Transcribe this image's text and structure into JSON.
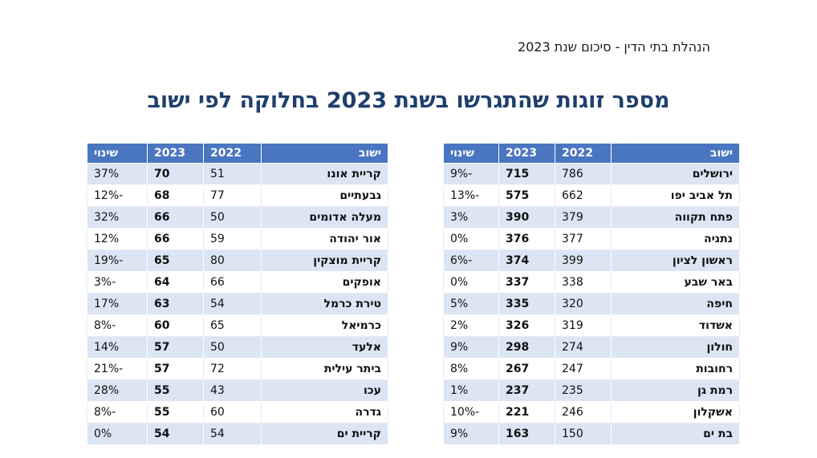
{
  "header": {
    "text": "הנהלת בתי הדין - סיכום שנת 2023"
  },
  "title": "מספר זוגות שהתגרשו בשנת 2023 בחלוקה לפי ישוב",
  "columns": {
    "town": "ישוב",
    "y2022": "2022",
    "y2023": "2023",
    "change": "שינוי"
  },
  "right_table": {
    "rows": [
      {
        "town": "ירושלים",
        "y2022": "786",
        "y2023": "715",
        "change": "-9%"
      },
      {
        "town": "תל אביב יפו",
        "y2022": "662",
        "y2023": "575",
        "change": "-13%"
      },
      {
        "town": "פתח תקווה",
        "y2022": "379",
        "y2023": "390",
        "change": "3%"
      },
      {
        "town": "נתניה",
        "y2022": "377",
        "y2023": "376",
        "change": "0%"
      },
      {
        "town": "ראשון לציון",
        "y2022": "399",
        "y2023": "374",
        "change": "-6%"
      },
      {
        "town": "באר שבע",
        "y2022": "338",
        "y2023": "337",
        "change": "0%"
      },
      {
        "town": "חיפה",
        "y2022": "320",
        "y2023": "335",
        "change": "5%"
      },
      {
        "town": "אשדוד",
        "y2022": "319",
        "y2023": "326",
        "change": "2%"
      },
      {
        "town": "חולון",
        "y2022": "274",
        "y2023": "298",
        "change": "9%"
      },
      {
        "town": "רחובות",
        "y2022": "247",
        "y2023": "267",
        "change": "8%"
      },
      {
        "town": "רמת גן",
        "y2022": "235",
        "y2023": "237",
        "change": "1%"
      },
      {
        "town": "אשקלון",
        "y2022": "246",
        "y2023": "221",
        "change": "-10%"
      },
      {
        "town": "בת ים",
        "y2022": "150",
        "y2023": "163",
        "change": "9%"
      }
    ]
  },
  "left_table": {
    "rows": [
      {
        "town": "קריית אונו",
        "y2022": "51",
        "y2023": "70",
        "change": "37%"
      },
      {
        "town": "גבעתיים",
        "y2022": "77",
        "y2023": "68",
        "change": "-12%"
      },
      {
        "town": "מעלה אדומים",
        "y2022": "50",
        "y2023": "66",
        "change": "32%"
      },
      {
        "town": "אור יהודה",
        "y2022": "59",
        "y2023": "66",
        "change": "12%"
      },
      {
        "town": "קריית מוצקין",
        "y2022": "80",
        "y2023": "65",
        "change": "-19%"
      },
      {
        "town": "אופקים",
        "y2022": "66",
        "y2023": "64",
        "change": "-3%"
      },
      {
        "town": "טירת כרמל",
        "y2022": "54",
        "y2023": "63",
        "change": "17%"
      },
      {
        "town": "כרמיאל",
        "y2022": "65",
        "y2023": "60",
        "change": "-8%"
      },
      {
        "town": "אלעד",
        "y2022": "50",
        "y2023": "57",
        "change": "14%"
      },
      {
        "town": "ביתר עילית",
        "y2022": "72",
        "y2023": "57",
        "change": "-21%"
      },
      {
        "town": "עכו",
        "y2022": "43",
        "y2023": "55",
        "change": "28%"
      },
      {
        "town": "גדרה",
        "y2022": "60",
        "y2023": "55",
        "change": "-8%"
      },
      {
        "town": "קריית ים",
        "y2022": "54",
        "y2023": "54",
        "change": "0%"
      }
    ]
  }
}
